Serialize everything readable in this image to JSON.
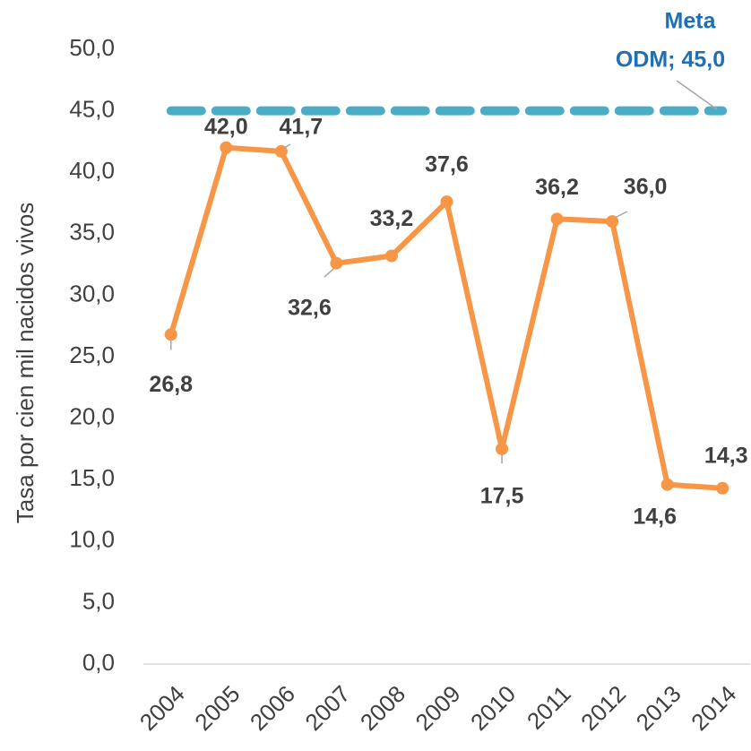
{
  "chart_data": {
    "type": "line",
    "y_axis_label": "Tasa por cien mil nacidos vivos",
    "categories": [
      "2004",
      "2005",
      "2006",
      "2007",
      "2008",
      "2009",
      "2010",
      "2011",
      "2012",
      "2013",
      "2014"
    ],
    "series": [
      {
        "name": "Tasa",
        "color": "#f79646",
        "values": [
          26.8,
          42.0,
          41.7,
          32.6,
          33.2,
          37.6,
          17.5,
          36.2,
          36.0,
          14.6,
          14.3
        ],
        "value_labels": [
          "26,8",
          "42,0",
          "41,7",
          "32,6",
          "33,2",
          "37,6",
          "17,5",
          "36,2",
          "36,0",
          "14,6",
          "14,3"
        ]
      }
    ],
    "target": {
      "value": 45.0,
      "color": "#4bacc6",
      "label_lines": [
        "Meta",
        "ODM; 45,0"
      ],
      "label_color": "#1f6fb5"
    },
    "ylim": [
      0,
      50
    ],
    "yticks": [
      {
        "value": 0,
        "label": "0,0"
      },
      {
        "value": 5,
        "label": "5,0"
      },
      {
        "value": 10,
        "label": "10,0"
      },
      {
        "value": 15,
        "label": "15,0"
      },
      {
        "value": 20,
        "label": "20,0"
      },
      {
        "value": 25,
        "label": "25,0"
      },
      {
        "value": 30,
        "label": "30,0"
      },
      {
        "value": 35,
        "label": "35,0"
      },
      {
        "value": 40,
        "label": "40,0"
      },
      {
        "value": 45,
        "label": "45,0"
      },
      {
        "value": 50,
        "label": "50,0"
      }
    ]
  }
}
